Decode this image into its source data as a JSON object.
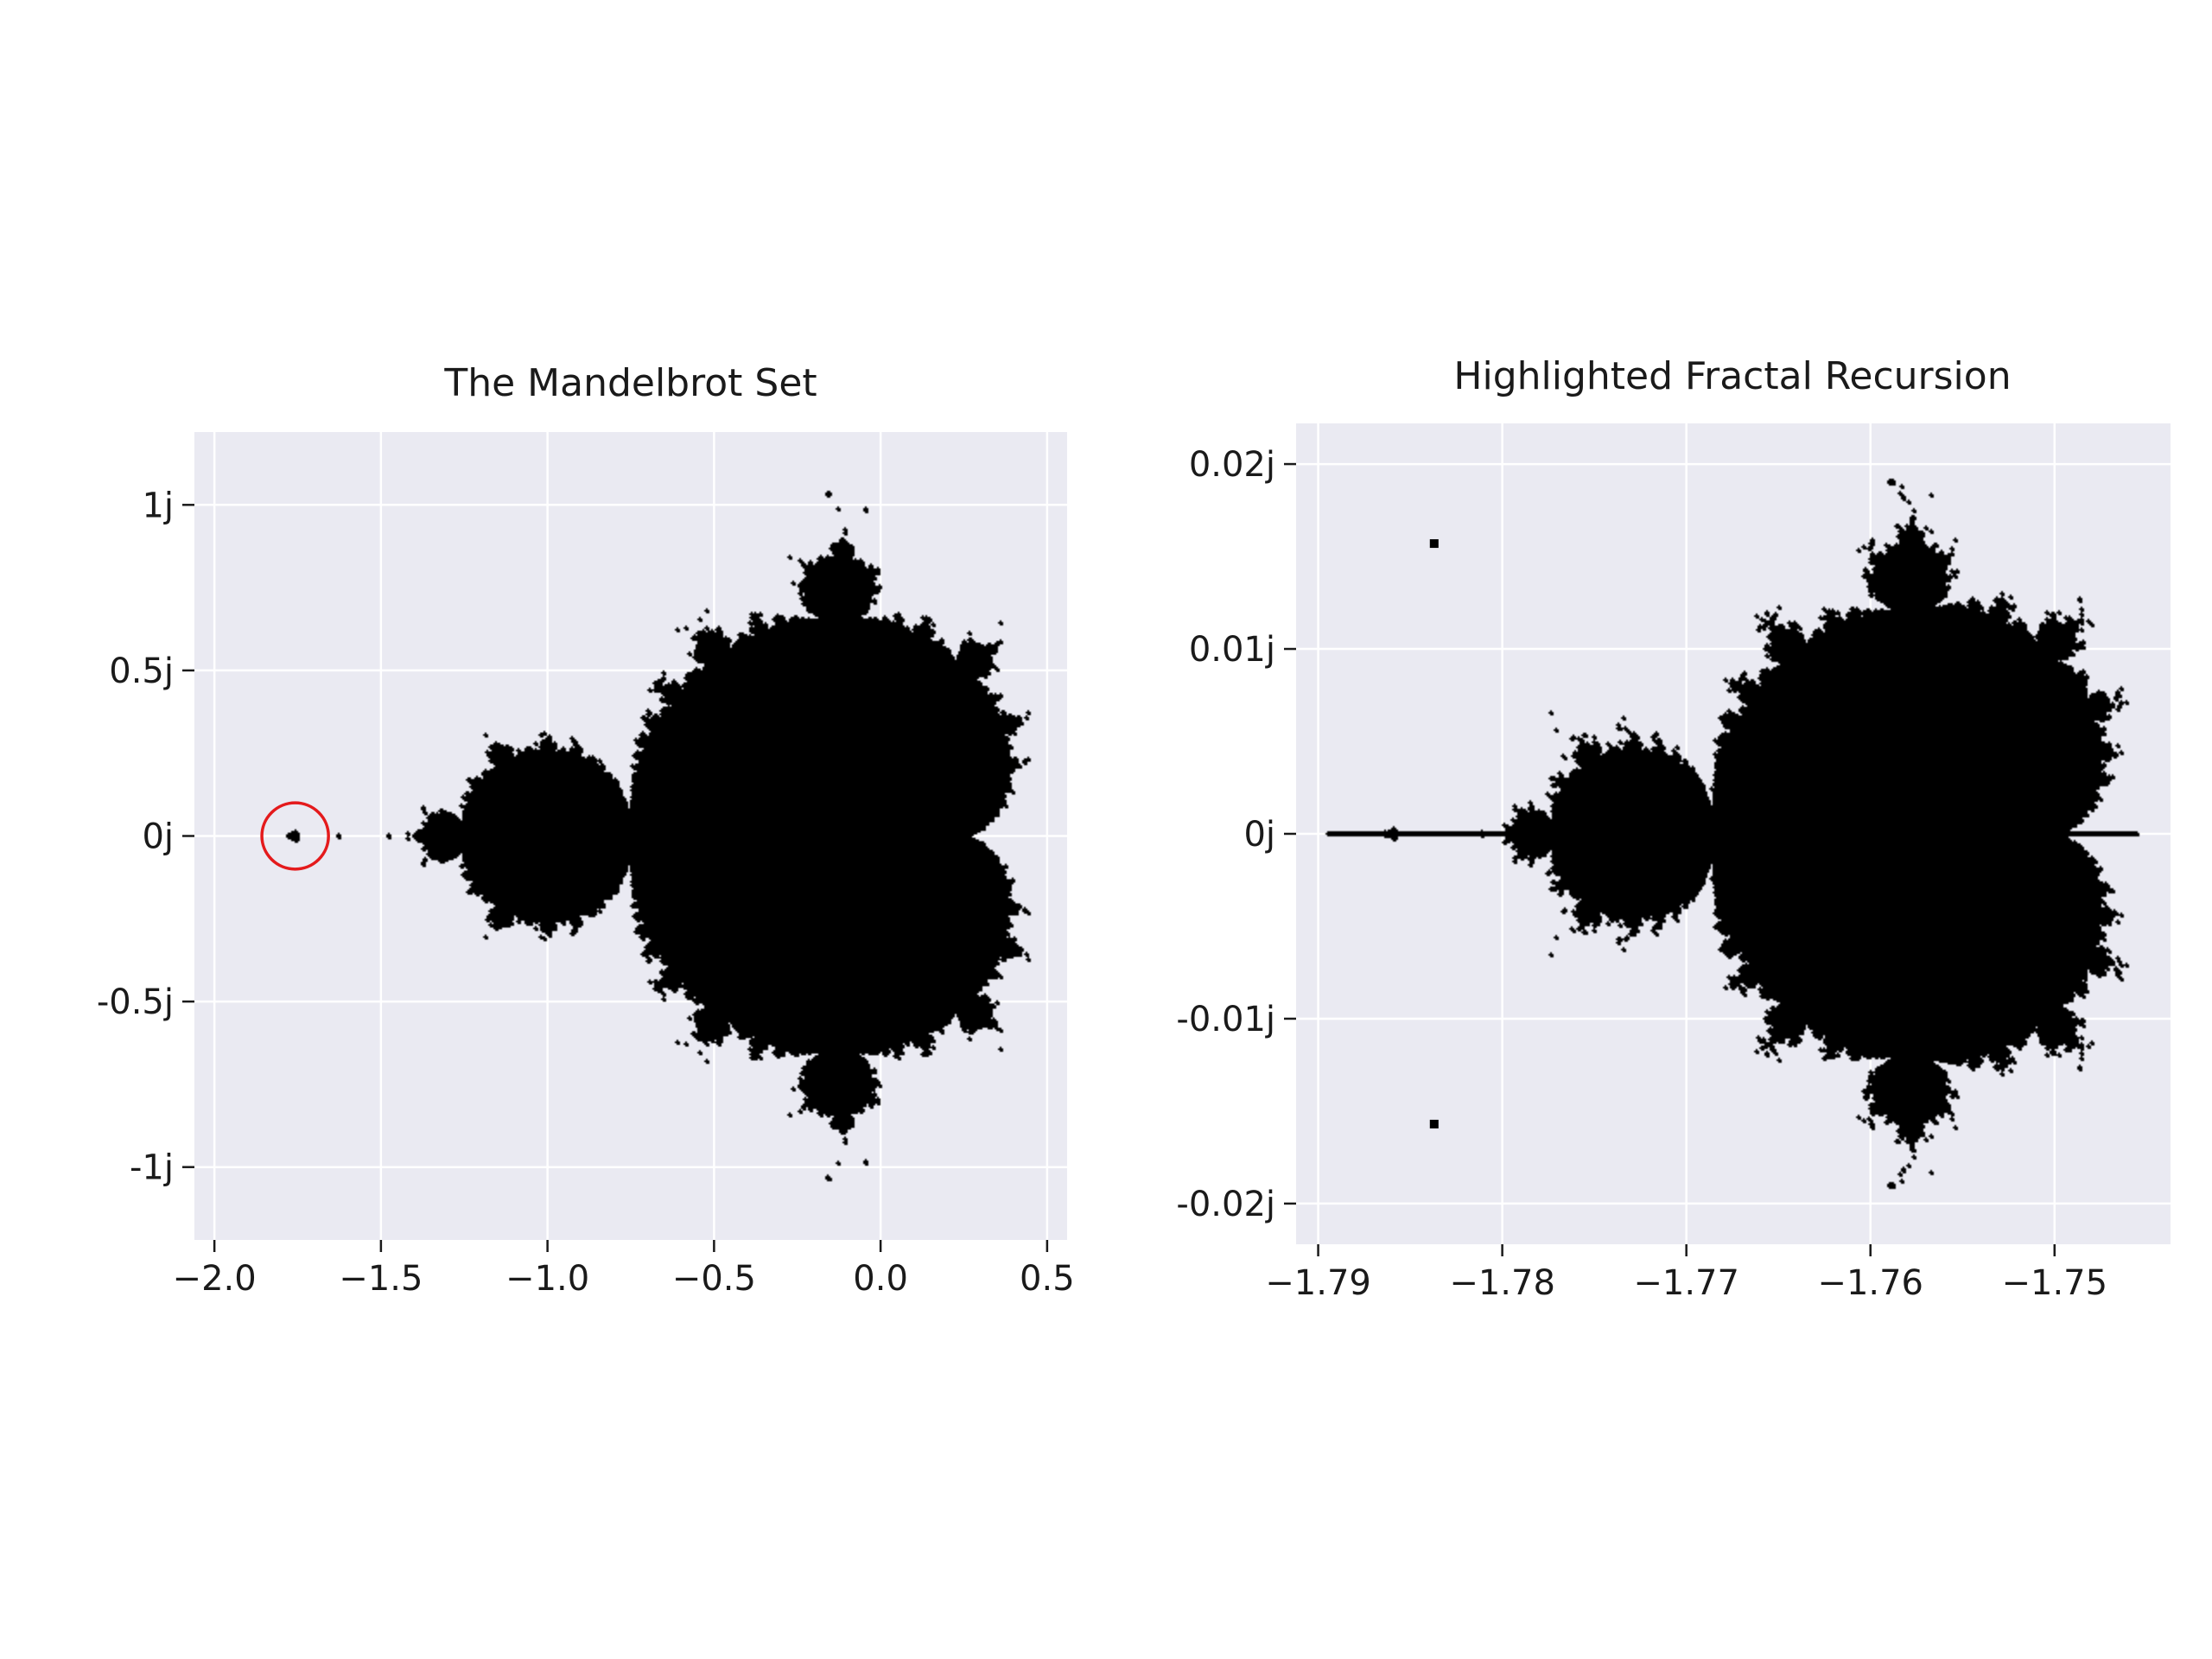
{
  "chart_data": [
    {
      "type": "scatter",
      "title": "The Mandelbrot Set",
      "xlabel": "",
      "ylabel": "",
      "xlim": [
        -2.06,
        0.56
      ],
      "ylim": [
        -1.22,
        1.22
      ],
      "x_ticks": [
        {
          "value": -2.0,
          "label": "−2.0"
        },
        {
          "value": -1.5,
          "label": "−1.5"
        },
        {
          "value": -1.0,
          "label": "−1.0"
        },
        {
          "value": -0.5,
          "label": "−0.5"
        },
        {
          "value": 0.0,
          "label": "0.0"
        },
        {
          "value": 0.5,
          "label": "0.5"
        }
      ],
      "y_ticks": [
        {
          "value": 1.0,
          "label": "1j"
        },
        {
          "value": 0.5,
          "label": "0.5j"
        },
        {
          "value": 0.0,
          "label": "0j"
        },
        {
          "value": -0.5,
          "label": "-0.5j"
        },
        {
          "value": -1.0,
          "label": "-1j"
        }
      ],
      "grid": true,
      "point_color": "#000000",
      "series": [
        {
          "set": "mandelbrot",
          "x_range": [
            -2.0,
            0.47
          ],
          "y_range": [
            -1.12,
            1.12
          ],
          "max_iter": 60
        }
      ],
      "annotation": {
        "type": "circle",
        "center": [
          -1.7575,
          0.0
        ],
        "radius": 0.1,
        "color": "#e41a1c"
      }
    },
    {
      "type": "scatter",
      "title": "Highlighted Fractal Recursion",
      "xlabel": "",
      "ylabel": "",
      "xlim": [
        -1.7912,
        -1.7437
      ],
      "ylim": [
        -0.0222,
        0.0222
      ],
      "x_ticks": [
        {
          "value": -1.79,
          "label": "−1.79"
        },
        {
          "value": -1.78,
          "label": "−1.78"
        },
        {
          "value": -1.77,
          "label": "−1.77"
        },
        {
          "value": -1.76,
          "label": "−1.76"
        },
        {
          "value": -1.75,
          "label": "−1.75"
        }
      ],
      "y_ticks": [
        {
          "value": 0.02,
          "label": "0.02j"
        },
        {
          "value": 0.01,
          "label": "0.01j"
        },
        {
          "value": 0.0,
          "label": "0j"
        },
        {
          "value": -0.01,
          "label": "-0.01j"
        },
        {
          "value": -0.02,
          "label": "-0.02j"
        }
      ],
      "grid": true,
      "point_color": "#000000",
      "series": [
        {
          "set": "mandelbrot",
          "x_range": [
            -1.7895,
            -1.7455
          ],
          "y_range": [
            -0.0205,
            0.0205
          ],
          "max_iter": 120
        }
      ],
      "extra_points": [
        {
          "x": -1.7837,
          "y": 0.0157
        },
        {
          "x": -1.7837,
          "y": -0.0157
        }
      ]
    }
  ],
  "colors": {
    "axes_bg": "#eaeaf2",
    "grid": "#ffffff",
    "text": "#1a1a1a",
    "points": "#000000",
    "highlight": "#e41a1c"
  }
}
